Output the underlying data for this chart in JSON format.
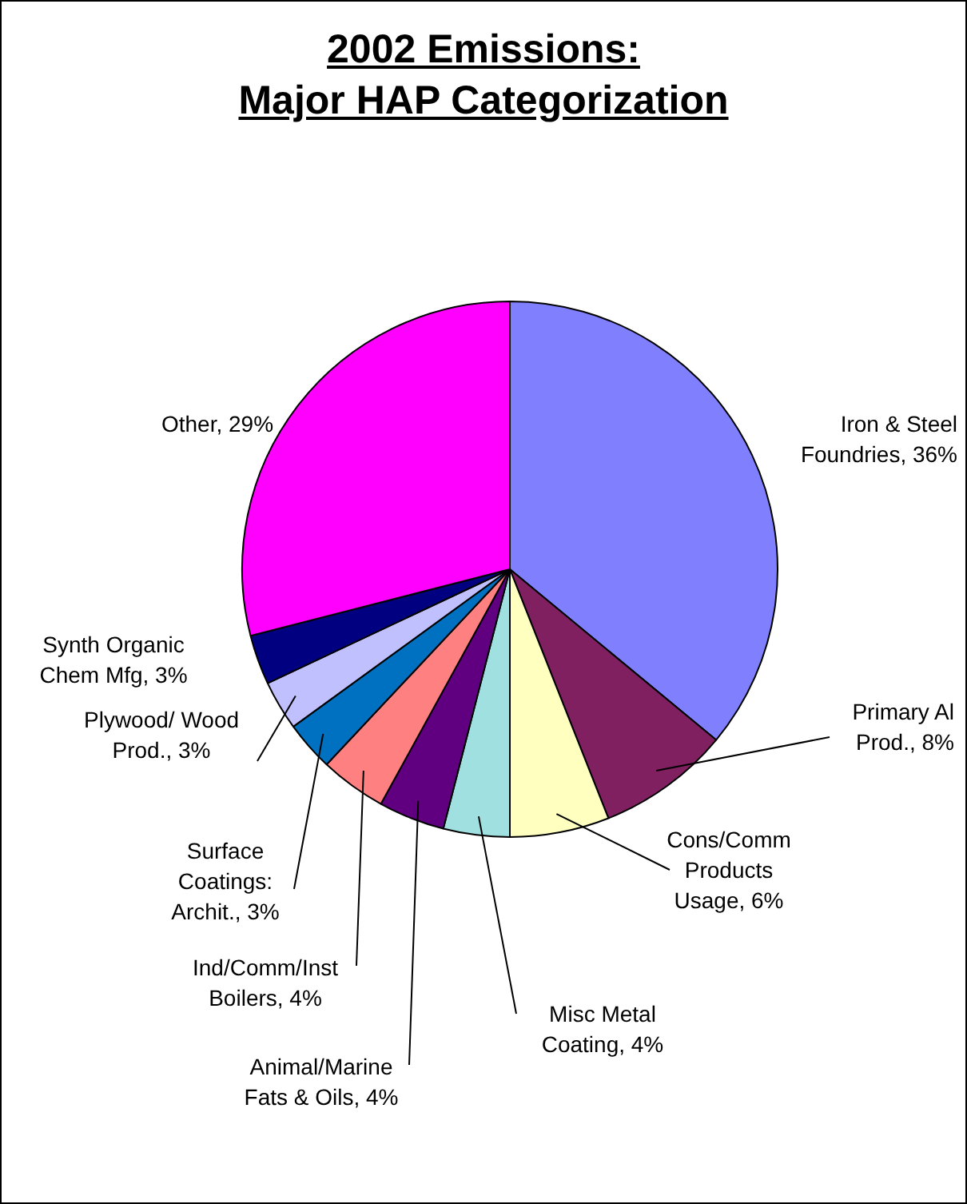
{
  "chart_data": {
    "type": "pie",
    "title": "2002 Emissions:\nMajor HAP Categorization",
    "categories": [
      "Iron & Steel Foundries",
      "Primary Al Prod.",
      "Cons/Comm Products Usage",
      "Misc Metal Coating",
      "Animal/Marine Fats & Oils",
      "Ind/Comm/Inst Boilers",
      "Surface Coatings: Archit.",
      "Plywood/ Wood Prod.",
      "Synth Organic Chem Mfg",
      "Other"
    ],
    "values": [
      36,
      8,
      6,
      4,
      4,
      4,
      3,
      3,
      3,
      29
    ],
    "value_labels": [
      "36%",
      "8%",
      "6%",
      "4%",
      "4%",
      "4%",
      "3%",
      "3%",
      "3%",
      "29%"
    ],
    "colors": [
      "#8080ff",
      "#802060",
      "#ffffc0",
      "#a0e0e0",
      "#600080",
      "#ff8080",
      "#0070c0",
      "#c0c0ff",
      "#000080",
      "#ff00ff"
    ],
    "legend": false
  }
}
